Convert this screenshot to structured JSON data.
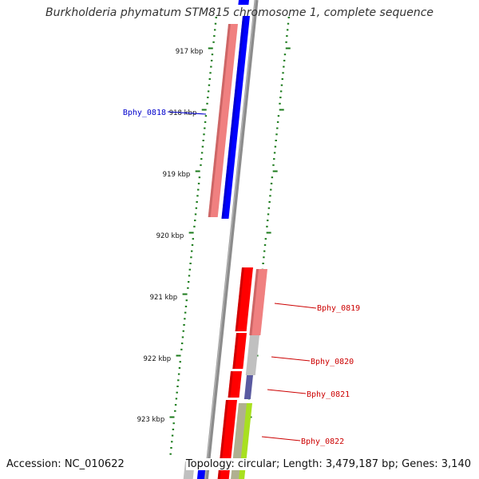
{
  "title": "Burkholderia phymatum STM815 chromosome 1, complete sequence",
  "footer": {
    "accession": "Accession: NC_010622",
    "summary": "Topology: circular; Length: 3,479,187 bp; Genes: 3,140"
  },
  "colors": {
    "backbone": "#8c8c8c",
    "tick": "#1a7a1a",
    "forward_strand_label": "#0000cc",
    "reverse_strand_label": "#cc0000",
    "blue_cds": "#0000ff",
    "red_cds": "#ff0000",
    "pink_cds": "#f08080",
    "grey_cds": "#c0c0c0",
    "slate_cds": "#5a5aa0",
    "lime_cds": "#a8e020"
  },
  "scale": {
    "unit": "kbp",
    "labels": [
      "917 kbp",
      "918 kbp",
      "919 kbp",
      "920 kbp",
      "921 kbp",
      "922 kbp",
      "923 kbp"
    ]
  },
  "gene_labels": [
    {
      "name": "Bphy_0818",
      "strand": "forward"
    },
    {
      "name": "Bphy_0819",
      "strand": "reverse"
    },
    {
      "name": "Bphy_0820",
      "strand": "reverse"
    },
    {
      "name": "Bphy_0821",
      "strand": "reverse"
    },
    {
      "name": "Bphy_0822",
      "strand": "reverse"
    }
  ]
}
